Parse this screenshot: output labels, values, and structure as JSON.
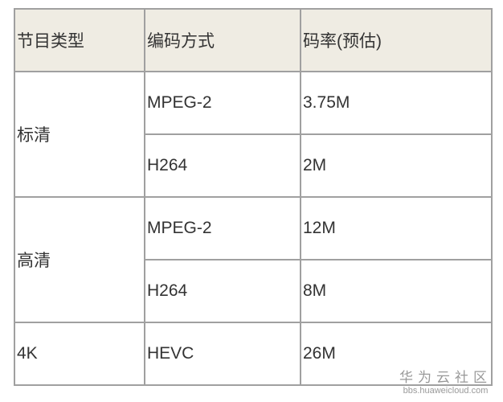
{
  "table": {
    "headers": [
      "节目类型",
      "编码方式",
      "码率(预估)"
    ],
    "groups": [
      {
        "type": "标清",
        "rows": [
          {
            "codec": "MPEG-2",
            "bitrate": "3.75M"
          },
          {
            "codec": "H264",
            "bitrate": "2M"
          }
        ]
      },
      {
        "type": "高清",
        "rows": [
          {
            "codec": "MPEG-2",
            "bitrate": "12M"
          },
          {
            "codec": "H264",
            "bitrate": "8M"
          }
        ]
      },
      {
        "type": "4K",
        "rows": [
          {
            "codec": "HEVC",
            "bitrate": "26M"
          }
        ]
      }
    ]
  },
  "colors": {
    "header_bg": "#efece3",
    "border": "#a0a0a0"
  },
  "watermark": {
    "name": "华为云社区",
    "url": "bbs.huaweicloud.com"
  }
}
